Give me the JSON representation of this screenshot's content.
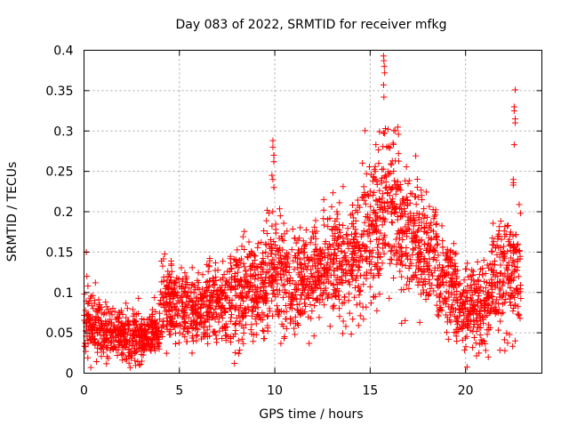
{
  "chart_data": {
    "type": "scatter",
    "title": "Day 083 of 2022, SRMTID for receiver mfkg",
    "xlabel": "GPS time / hours",
    "ylabel": "SRMTID / TECUs",
    "xlim": [
      0,
      24
    ],
    "ylim": [
      0,
      0.4
    ],
    "x_ticks": [
      0,
      5,
      10,
      15,
      20
    ],
    "x_tick_labels": [
      "0",
      "5",
      "10",
      "15",
      "20"
    ],
    "y_ticks": [
      0,
      0.05,
      0.1,
      0.15,
      0.2,
      0.25,
      0.3,
      0.35,
      0.4
    ],
    "y_tick_labels": [
      "0",
      "0.05",
      "0.1",
      "0.15",
      "0.2",
      "0.25",
      "0.3",
      "0.35",
      "0.4"
    ],
    "grid": true,
    "marker": "plus",
    "series": [
      {
        "name": "mfkg",
        "color": "#ff0000",
        "segments": [
          {
            "x_start": 0.0,
            "x_end": 1.0,
            "y_center": 0.06,
            "y_spread": 0.025
          },
          {
            "x_start": 1.0,
            "x_end": 2.0,
            "y_center": 0.05,
            "y_spread": 0.02
          },
          {
            "x_start": 2.0,
            "x_end": 3.0,
            "y_center": 0.045,
            "y_spread": 0.025
          },
          {
            "x_start": 3.0,
            "x_end": 4.0,
            "y_center": 0.05,
            "y_spread": 0.02
          },
          {
            "x_start": 4.0,
            "x_end": 4.5,
            "y_center": 0.09,
            "y_spread": 0.04
          },
          {
            "x_start": 4.5,
            "x_end": 5.5,
            "y_center": 0.085,
            "y_spread": 0.03
          },
          {
            "x_start": 5.5,
            "x_end": 6.5,
            "y_center": 0.08,
            "y_spread": 0.03
          },
          {
            "x_start": 6.5,
            "x_end": 7.5,
            "y_center": 0.09,
            "y_spread": 0.035
          },
          {
            "x_start": 7.5,
            "x_end": 8.5,
            "y_center": 0.1,
            "y_spread": 0.04
          },
          {
            "x_start": 8.5,
            "x_end": 9.5,
            "y_center": 0.105,
            "y_spread": 0.04
          },
          {
            "x_start": 9.5,
            "x_end": 10.5,
            "y_center": 0.12,
            "y_spread": 0.045
          },
          {
            "x_start": 10.5,
            "x_end": 11.5,
            "y_center": 0.11,
            "y_spread": 0.04
          },
          {
            "x_start": 11.5,
            "x_end": 12.5,
            "y_center": 0.115,
            "y_spread": 0.04
          },
          {
            "x_start": 12.5,
            "x_end": 13.5,
            "y_center": 0.14,
            "y_spread": 0.045
          },
          {
            "x_start": 13.5,
            "x_end": 14.5,
            "y_center": 0.14,
            "y_spread": 0.05
          },
          {
            "x_start": 14.5,
            "x_end": 15.5,
            "y_center": 0.18,
            "y_spread": 0.06
          },
          {
            "x_start": 15.5,
            "x_end": 16.5,
            "y_center": 0.2,
            "y_spread": 0.06
          },
          {
            "x_start": 16.5,
            "x_end": 17.5,
            "y_center": 0.17,
            "y_spread": 0.05
          },
          {
            "x_start": 17.5,
            "x_end": 18.5,
            "y_center": 0.15,
            "y_spread": 0.05
          },
          {
            "x_start": 18.5,
            "x_end": 19.5,
            "y_center": 0.11,
            "y_spread": 0.04
          },
          {
            "x_start": 19.5,
            "x_end": 20.5,
            "y_center": 0.085,
            "y_spread": 0.035
          },
          {
            "x_start": 20.5,
            "x_end": 21.3,
            "y_center": 0.08,
            "y_spread": 0.035
          },
          {
            "x_start": 21.3,
            "x_end": 22.0,
            "y_center": 0.12,
            "y_spread": 0.05
          },
          {
            "x_start": 22.0,
            "x_end": 22.9,
            "y_center": 0.13,
            "y_spread": 0.05
          }
        ],
        "outliers": [
          {
            "x": 0.12,
            "y": 0.15
          },
          {
            "x": 0.15,
            "y": 0.12
          },
          {
            "x": 9.9,
            "y": 0.288
          },
          {
            "x": 9.9,
            "y": 0.28
          },
          {
            "x": 9.95,
            "y": 0.27
          },
          {
            "x": 9.95,
            "y": 0.262
          },
          {
            "x": 9.85,
            "y": 0.245
          },
          {
            "x": 9.9,
            "y": 0.24
          },
          {
            "x": 9.95,
            "y": 0.23
          },
          {
            "x": 15.7,
            "y": 0.393
          },
          {
            "x": 15.72,
            "y": 0.387
          },
          {
            "x": 15.74,
            "y": 0.38
          },
          {
            "x": 15.76,
            "y": 0.372
          },
          {
            "x": 15.7,
            "y": 0.357
          },
          {
            "x": 15.72,
            "y": 0.342
          },
          {
            "x": 15.8,
            "y": 0.303
          },
          {
            "x": 15.75,
            "y": 0.297
          },
          {
            "x": 15.3,
            "y": 0.283
          },
          {
            "x": 16.2,
            "y": 0.285
          },
          {
            "x": 22.6,
            "y": 0.351
          },
          {
            "x": 22.55,
            "y": 0.33
          },
          {
            "x": 22.55,
            "y": 0.325
          },
          {
            "x": 22.6,
            "y": 0.315
          },
          {
            "x": 22.6,
            "y": 0.31
          },
          {
            "x": 22.55,
            "y": 0.283
          },
          {
            "x": 22.5,
            "y": 0.24
          },
          {
            "x": 22.5,
            "y": 0.233
          },
          {
            "x": 2.9,
            "y": 0.01
          },
          {
            "x": 20.7,
            "y": 0.025
          },
          {
            "x": 22.6,
            "y": 0.04
          }
        ]
      }
    ]
  }
}
